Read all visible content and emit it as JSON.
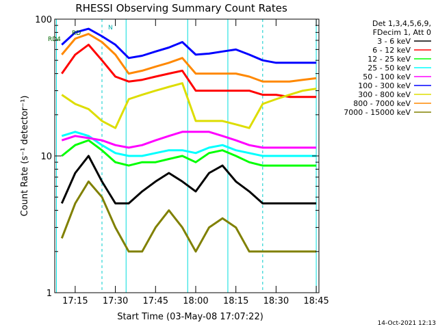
{
  "chart_data": {
    "type": "line",
    "title": "RHESSI Observing Summary Count Rates",
    "xlabel": "Start Time (03-May-08 17:07:22)",
    "ylabel": "Count Rate (s⁻¹ detector⁻¹)",
    "y_scale": "log",
    "ylim": [
      1,
      100
    ],
    "xlim": [
      "17:07:22",
      "18:46:00"
    ],
    "x_ticks": [
      "17:15",
      "17:30",
      "17:45",
      "18:00",
      "18:15",
      "18:30",
      "18:45"
    ],
    "y_ticks": [
      "1",
      "10",
      "100"
    ],
    "grid": false,
    "legend_position": "top-right",
    "legend_header": [
      "Det 1,3,4,5,6,9,",
      "FDecim 1, Att 0"
    ],
    "timestamp": "14-Oct-2021 12:13",
    "annotations": {
      "flag_labels": [
        "RD4",
        "RD",
        "N"
      ]
    },
    "vertical_markers": {
      "dashed": [
        "17:25",
        "18:25"
      ],
      "solid": [
        "17:08",
        "17:34",
        "17:57",
        "18:12",
        "18:45"
      ]
    },
    "series": [
      {
        "name": "3 - 6 keV",
        "color": "#000000",
        "x": [
          "17:10",
          "17:15",
          "17:20",
          "17:25",
          "17:30",
          "17:35",
          "17:40",
          "17:45",
          "17:50",
          "17:55",
          "18:00",
          "18:05",
          "18:10",
          "18:15",
          "18:20",
          "18:25",
          "18:30",
          "18:35",
          "18:40",
          "18:45"
        ],
        "values": [
          4.5,
          7.5,
          10,
          6.5,
          4.5,
          4.5,
          5.5,
          6.5,
          7.5,
          6.5,
          5.5,
          7.5,
          8.5,
          6.5,
          5.5,
          4.5,
          4.5,
          4.5,
          4.5,
          4.5
        ]
      },
      {
        "name": "6 - 12 keV",
        "color": "#ff0000",
        "x": [
          "17:10",
          "17:15",
          "17:20",
          "17:25",
          "17:30",
          "17:35",
          "17:40",
          "17:45",
          "17:50",
          "17:55",
          "18:00",
          "18:05",
          "18:10",
          "18:15",
          "18:20",
          "18:25",
          "18:30",
          "18:35",
          "18:40",
          "18:45"
        ],
        "values": [
          40,
          55,
          65,
          50,
          38,
          35,
          36,
          38,
          40,
          42,
          30,
          30,
          30,
          30,
          30,
          28,
          28,
          27,
          27,
          27
        ]
      },
      {
        "name": "12 - 25 keV",
        "color": "#00ff00",
        "x": [
          "17:10",
          "17:15",
          "17:20",
          "17:25",
          "17:30",
          "17:35",
          "17:40",
          "17:45",
          "17:50",
          "17:55",
          "18:00",
          "18:05",
          "18:10",
          "18:15",
          "18:20",
          "18:25",
          "18:30",
          "18:35",
          "18:40",
          "18:45"
        ],
        "values": [
          10,
          12,
          13,
          11,
          9,
          8.5,
          9,
          9,
          9.5,
          10,
          9,
          10.5,
          11,
          10,
          9,
          8.5,
          8.5,
          8.5,
          8.5,
          8.5
        ]
      },
      {
        "name": "25 - 50 keV",
        "color": "#00ffff",
        "x": [
          "17:10",
          "17:15",
          "17:20",
          "17:25",
          "17:30",
          "17:35",
          "17:40",
          "17:45",
          "17:50",
          "17:55",
          "18:00",
          "18:05",
          "18:10",
          "18:15",
          "18:20",
          "18:25",
          "18:30",
          "18:35",
          "18:40",
          "18:45"
        ],
        "values": [
          14,
          15,
          14,
          12,
          10.5,
          10,
          10,
          10.5,
          11,
          11,
          10.5,
          11.5,
          12,
          11,
          10.5,
          10,
          10,
          10,
          10,
          10
        ]
      },
      {
        "name": "50 - 100 keV",
        "color": "#ff00ff",
        "x": [
          "17:10",
          "17:15",
          "17:20",
          "17:25",
          "17:30",
          "17:35",
          "17:40",
          "17:45",
          "17:50",
          "17:55",
          "18:00",
          "18:05",
          "18:10",
          "18:15",
          "18:20",
          "18:25",
          "18:30",
          "18:35",
          "18:40",
          "18:45"
        ],
        "values": [
          13,
          14,
          13.5,
          13,
          12,
          11.5,
          12,
          13,
          14,
          15,
          15,
          15,
          14,
          13,
          12,
          11.5,
          11.5,
          11.5,
          11.5,
          11.5
        ]
      },
      {
        "name": "100 - 300 keV",
        "color": "#0000ff",
        "x": [
          "17:10",
          "17:15",
          "17:20",
          "17:25",
          "17:30",
          "17:35",
          "17:40",
          "17:45",
          "17:50",
          "17:55",
          "18:00",
          "18:05",
          "18:10",
          "18:15",
          "18:20",
          "18:25",
          "18:30",
          "18:35",
          "18:40",
          "18:45"
        ],
        "values": [
          65,
          80,
          85,
          75,
          65,
          52,
          54,
          58,
          62,
          68,
          55,
          56,
          58,
          60,
          55,
          50,
          48,
          48,
          48,
          48
        ]
      },
      {
        "name": "300 - 800 keV",
        "color": "#dddd00",
        "x": [
          "17:10",
          "17:15",
          "17:20",
          "17:25",
          "17:30",
          "17:35",
          "17:40",
          "17:45",
          "17:50",
          "17:55",
          "18:00",
          "18:05",
          "18:10",
          "18:15",
          "18:20",
          "18:25",
          "18:30",
          "18:35",
          "18:40",
          "18:45"
        ],
        "values": [
          28,
          24,
          22,
          18,
          16,
          26,
          28,
          30,
          32,
          34,
          18,
          18,
          18,
          17,
          16,
          24,
          26,
          28,
          30,
          31
        ]
      },
      {
        "name": "800 - 7000 keV",
        "color": "#ff8800",
        "x": [
          "17:10",
          "17:15",
          "17:20",
          "17:25",
          "17:30",
          "17:35",
          "17:40",
          "17:45",
          "17:50",
          "17:55",
          "18:00",
          "18:05",
          "18:10",
          "18:15",
          "18:20",
          "18:25",
          "18:30",
          "18:35",
          "18:40",
          "18:45"
        ],
        "values": [
          55,
          72,
          78,
          68,
          55,
          40,
          42,
          45,
          48,
          52,
          40,
          40,
          40,
          40,
          38,
          35,
          35,
          35,
          36,
          37
        ]
      },
      {
        "name": "7000 - 15000 keV",
        "color": "#808000",
        "x": [
          "17:10",
          "17:15",
          "17:20",
          "17:25",
          "17:30",
          "17:35",
          "17:40",
          "17:45",
          "17:50",
          "17:55",
          "18:00",
          "18:05",
          "18:10",
          "18:15",
          "18:20",
          "18:25",
          "18:30",
          "18:35",
          "18:40",
          "18:45"
        ],
        "values": [
          2.5,
          4.5,
          6.5,
          5,
          3,
          2,
          2,
          3,
          4,
          3,
          2,
          3,
          3.5,
          3,
          2,
          2,
          2,
          2,
          2,
          2
        ]
      }
    ]
  }
}
